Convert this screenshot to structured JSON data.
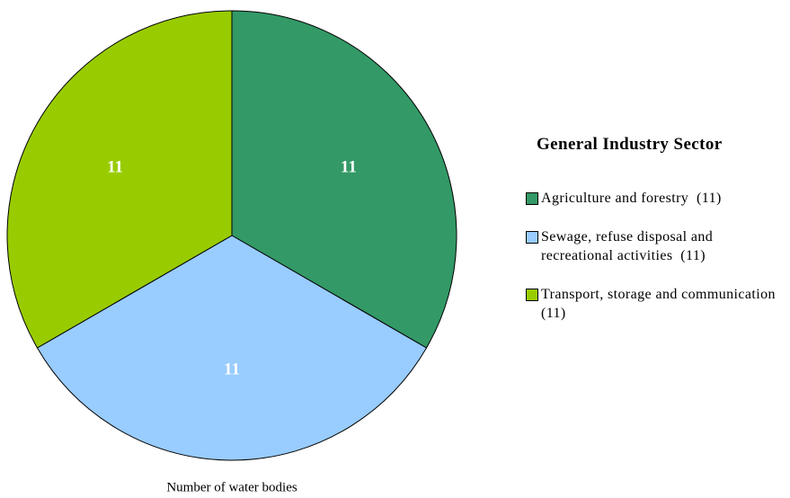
{
  "chart_data": {
    "type": "pie",
    "legend_title": "General Industry Sector",
    "categories": [
      "Agriculture and forestry",
      "Sewage, refuse disposal and recreational activities",
      "Transport, storage and communication"
    ],
    "values": [
      11,
      11,
      11
    ],
    "legend_labels": [
      "(11)",
      "(11)",
      "(11)"
    ],
    "colors": [
      "#339966",
      "#99ccff",
      "#99cc00"
    ],
    "xlabel": "Number of water bodies",
    "legend": "right"
  }
}
